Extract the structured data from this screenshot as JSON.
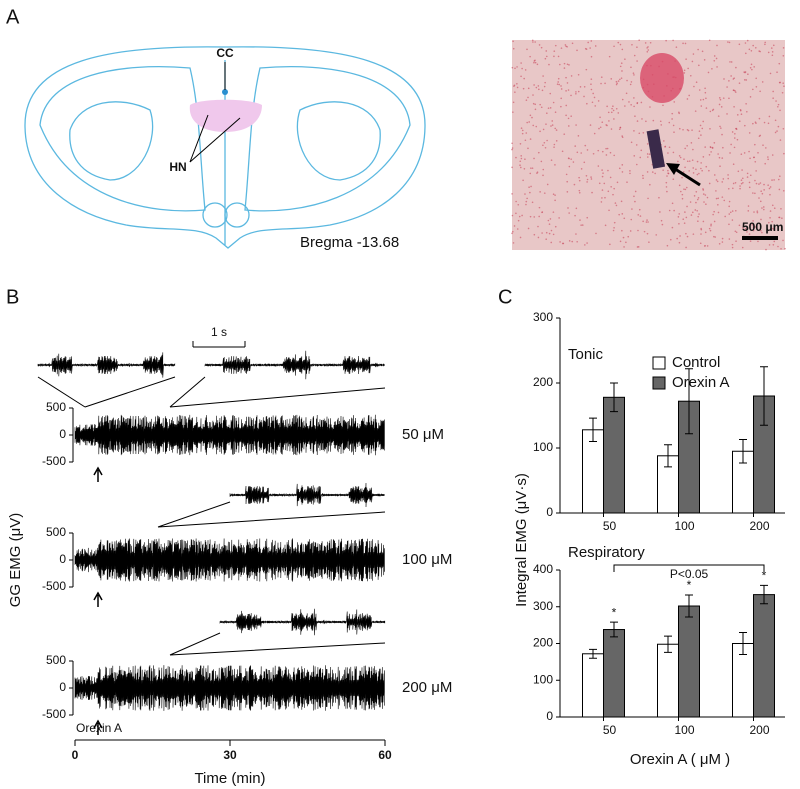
{
  "panel_a": {
    "label": "A",
    "cc": "CC",
    "hn": "HN",
    "bregma": "Bregma -13.68",
    "scale_bar": "500 μm"
  },
  "panel_b": {
    "label": "B",
    "ylabel": "GG EMG (μV)",
    "xlabel": "Time (min)",
    "scale_bar": "1 s",
    "drug": "Orexin A",
    "xlim": [
      0,
      60
    ],
    "xticks": [
      0,
      30,
      60
    ],
    "traces": [
      {
        "dose": "50 μM",
        "ylim": [
          -500,
          500
        ],
        "yticks": [
          500,
          0,
          -500
        ]
      },
      {
        "dose": "100 μM",
        "ylim": [
          -500,
          500
        ],
        "yticks": [
          500,
          0,
          -500
        ]
      },
      {
        "dose": "200 μM",
        "ylim": [
          -500,
          500
        ],
        "yticks": [
          500,
          0,
          -500
        ]
      }
    ]
  },
  "panel_c": {
    "label": "C",
    "ylabel": "Integral EMG (μV·s)",
    "xlabel": "Orexin A ( μM )"
  },
  "chart_data": [
    {
      "type": "bar",
      "title": "Tonic",
      "categories": [
        "50",
        "100",
        "200"
      ],
      "series": [
        {
          "name": "Control",
          "color": "#ffffff",
          "values": [
            128,
            88,
            95
          ],
          "errors": [
            18,
            17,
            18
          ]
        },
        {
          "name": "Orexin A",
          "color": "#666666",
          "values": [
            178,
            172,
            180
          ],
          "errors": [
            22,
            50,
            45
          ]
        }
      ],
      "ylim": [
        0,
        300
      ],
      "yticks": [
        0,
        100,
        200,
        300
      ]
    },
    {
      "type": "bar",
      "title": "Respiratory",
      "categories": [
        "50",
        "100",
        "200"
      ],
      "series": [
        {
          "color": "#ffffff",
          "values": [
            172,
            198,
            200
          ],
          "errors": [
            12,
            22,
            30
          ]
        },
        {
          "color": "#666666",
          "values": [
            238,
            302,
            333
          ],
          "errors": [
            20,
            30,
            25
          ],
          "significance": [
            "*",
            "*",
            "*"
          ]
        }
      ],
      "bracket_label": "P<0.05",
      "ylim": [
        0,
        400
      ],
      "yticks": [
        0,
        100,
        200,
        300,
        400
      ]
    }
  ]
}
